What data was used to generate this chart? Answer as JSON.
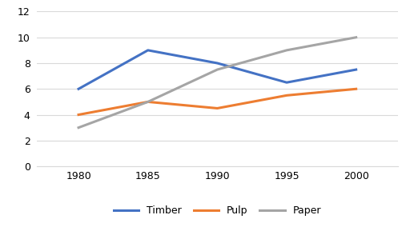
{
  "years": [
    1980,
    1985,
    1990,
    1995,
    2000
  ],
  "timber": [
    6,
    9,
    8,
    6.5,
    7.5
  ],
  "pulp": [
    4,
    5,
    4.5,
    5.5,
    6
  ],
  "paper": [
    3,
    5,
    7.5,
    9,
    10
  ],
  "timber_color": "#4472C4",
  "pulp_color": "#ED7D31",
  "paper_color": "#A5A5A5",
  "ylim": [
    0,
    12
  ],
  "yticks": [
    0,
    2,
    4,
    6,
    8,
    10,
    12
  ],
  "xticks": [
    1980,
    1985,
    1990,
    1995,
    2000
  ],
  "legend_labels": [
    "Timber",
    "Pulp",
    "Paper"
  ],
  "linewidth": 2.2
}
